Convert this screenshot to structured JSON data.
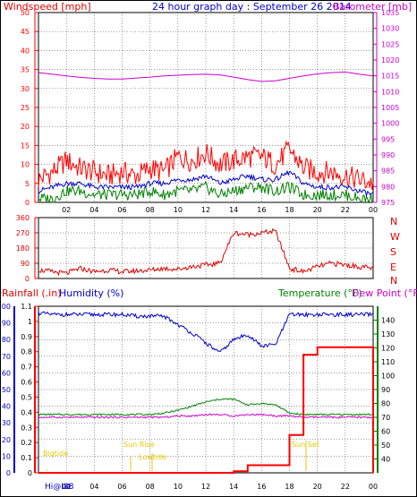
{
  "header": {
    "windspeed_label": "Windspeed [mph]",
    "title": "24 hour graph day : September 26 2014",
    "barometer_label": "Barometer [mb]"
  },
  "colors": {
    "wind_gust": "#ff0000",
    "wind_avg": "#0000cc",
    "wind_min": "#008000",
    "barometer": "#cc00cc",
    "direction": "#e00000",
    "rain": "#ff0000",
    "humidity": "#0000cc",
    "temperature": "#008000",
    "dewpoint": "#cc00cc",
    "annotation": "#e6c800",
    "grid": "#000000",
    "frame": "#000000"
  },
  "direction_panel": {
    "compass_labels": [
      "N",
      "W",
      "S",
      "E",
      "N"
    ]
  },
  "bottom_header": {
    "rainfall_label": "Rainfall (.in)",
    "humidity_label": "Humidity (%)",
    "temperature_label": "Temperature (°F)",
    "dewpoint_label": "Dew Point (°F)"
  },
  "annotations": {
    "highlow_label": "Hi@Lo",
    "sun_rise": "Sun Rise",
    "sun_set": "Sun Set",
    "low_tide": "Lowtide",
    "bigtide": "Bigtide",
    "low_marker": "88"
  },
  "chart_data": [
    {
      "type": "line",
      "name": "wind",
      "x_ticks": [
        "02",
        "04",
        "06",
        "08",
        "10",
        "12",
        "14",
        "16",
        "18",
        "20",
        "22",
        "00"
      ],
      "y_left_ticks": [
        0,
        5,
        10,
        15,
        20,
        25,
        30,
        35,
        40,
        45,
        50
      ],
      "y_left_range": [
        0,
        50
      ],
      "y_right_ticks": [
        975,
        980,
        985,
        990,
        995,
        1000,
        1005,
        1010,
        1015,
        1020,
        1025,
        1030,
        1035
      ],
      "y_right_range": [
        975,
        1035
      ],
      "x": [
        0,
        1,
        2,
        3,
        4,
        5,
        6,
        7,
        8,
        9,
        10,
        11,
        12,
        13,
        14,
        15,
        16,
        17,
        18,
        19,
        20,
        21,
        22,
        23,
        24
      ],
      "series": [
        {
          "name": "gust",
          "values": [
            6,
            8,
            11,
            9,
            8,
            7,
            8,
            7,
            9,
            8,
            12,
            11,
            13,
            10,
            11,
            12,
            12,
            10,
            14,
            9,
            8,
            8,
            7,
            6,
            5
          ]
        },
        {
          "name": "avg",
          "values": [
            3,
            4,
            5,
            5,
            4,
            4,
            4,
            4,
            5,
            5,
            6,
            6,
            7,
            5,
            6,
            7,
            6,
            6,
            8,
            5,
            4,
            4,
            4,
            3,
            2
          ]
        },
        {
          "name": "min",
          "values": [
            1,
            1,
            3,
            3,
            2,
            2,
            2,
            2,
            3,
            2,
            3,
            3,
            4,
            2,
            3,
            4,
            4,
            3,
            4,
            2,
            2,
            2,
            2,
            1,
            1
          ]
        },
        {
          "name": "barometer",
          "values": [
            1016,
            1015.5,
            1015,
            1014.5,
            1014.2,
            1014,
            1014,
            1014.3,
            1014.6,
            1015,
            1015.2,
            1015.4,
            1015.5,
            1015.3,
            1014.6,
            1013.8,
            1013.2,
            1013.4,
            1014.2,
            1015,
            1015.6,
            1016,
            1016.2,
            1015.5,
            1015
          ]
        }
      ]
    },
    {
      "type": "line",
      "name": "direction",
      "x_ticks": [
        "02",
        "04",
        "06",
        "08",
        "10",
        "12",
        "14",
        "16",
        "18",
        "20",
        "22",
        "00"
      ],
      "y_ticks": [
        0,
        90,
        180,
        270,
        360
      ],
      "y_range": [
        0,
        360
      ],
      "x": [
        0,
        1,
        2,
        3,
        4,
        5,
        6,
        7,
        8,
        9,
        10,
        11,
        12,
        13,
        14,
        15,
        16,
        17,
        18,
        19,
        20,
        21,
        22,
        23,
        24
      ],
      "series": [
        {
          "name": "direction",
          "values": [
            50,
            40,
            30,
            60,
            40,
            50,
            40,
            45,
            50,
            60,
            55,
            70,
            80,
            90,
            270,
            260,
            270,
            280,
            60,
            40,
            70,
            90,
            80,
            70,
            60
          ]
        }
      ]
    },
    {
      "type": "line",
      "name": "rain-humidity-temperature",
      "x_ticks": [
        "02",
        "04",
        "06",
        "08",
        "10",
        "12",
        "14",
        "16",
        "18",
        "20",
        "22",
        "00"
      ],
      "y_humidity_ticks": [
        0,
        10,
        20,
        30,
        40,
        50,
        60,
        70,
        80,
        90,
        100
      ],
      "y_humidity_range": [
        0,
        100
      ],
      "y_rain_ticks": [
        0,
        0.1,
        0.2,
        0.3,
        0.4,
        0.5,
        0.6,
        0.7,
        0.8,
        0.9,
        1,
        1.1
      ],
      "y_rain_range": [
        0,
        1.1
      ],
      "y_temp_ticks": [
        40,
        50,
        60,
        70,
        80,
        90,
        100,
        110,
        120,
        130,
        140
      ],
      "y_temp_range": [
        30,
        150
      ],
      "x": [
        0,
        1,
        2,
        3,
        4,
        5,
        6,
        7,
        8,
        9,
        10,
        11,
        12,
        13,
        14,
        15,
        16,
        17,
        18,
        19,
        20,
        21,
        22,
        23,
        24
      ],
      "series": [
        {
          "name": "humidity",
          "values": [
            96,
            95,
            95,
            95,
            95,
            95,
            95,
            94,
            94,
            94,
            89,
            84,
            78,
            72,
            80,
            83,
            76,
            77,
            95,
            95,
            95,
            95,
            95,
            95,
            95
          ]
        },
        {
          "name": "temperature",
          "values": [
            72,
            72,
            72,
            72,
            72,
            72,
            72,
            72,
            72,
            73,
            75,
            78,
            81,
            83,
            83,
            79,
            80,
            79,
            73,
            72,
            72,
            72,
            72,
            72,
            72
          ]
        },
        {
          "name": "dewpoint",
          "values": [
            70,
            70,
            70,
            70,
            70,
            70,
            70,
            70,
            70,
            70,
            71,
            71,
            72,
            72,
            71,
            72,
            72,
            71,
            71,
            70,
            70,
            70,
            70,
            70,
            70
          ]
        },
        {
          "name": "rain",
          "values": [
            0,
            0,
            0,
            0,
            0,
            0,
            0,
            0,
            0,
            0,
            0,
            0,
            0,
            0,
            0.01,
            0.05,
            0.05,
            0.05,
            0.25,
            0.78,
            0.83,
            0.83,
            0.83,
            0.83,
            0
          ]
        }
      ]
    }
  ]
}
